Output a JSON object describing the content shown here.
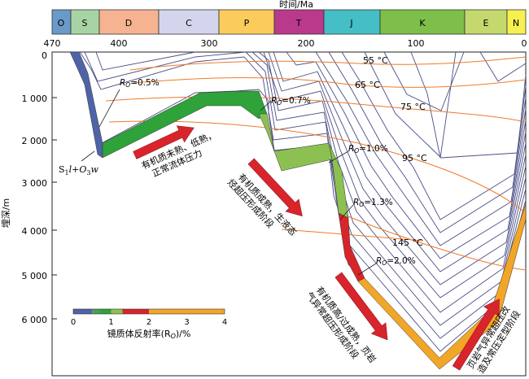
{
  "periods": [
    {
      "code": "O",
      "color": "#6A9AC8"
    },
    {
      "code": "S",
      "color": "#A7D4A4"
    },
    {
      "code": "D",
      "color": "#F6B391"
    },
    {
      "code": "C",
      "color": "#D3D5EC"
    },
    {
      "code": "P",
      "color": "#FBCC5B"
    },
    {
      "code": "T",
      "color": "#B9398B"
    },
    {
      "code": "J",
      "color": "#45BEC6"
    },
    {
      "code": "K",
      "color": "#7DBF49"
    },
    {
      "code": "E",
      "color": "#C4D86E"
    },
    {
      "code": "N",
      "color": "#F6F050"
    }
  ],
  "x_axis": {
    "title": "时间/Ma",
    "ticks": [
      "470",
      "400",
      "300",
      "200",
      "100",
      "0"
    ]
  },
  "y_axis": {
    "title": "埋深/m",
    "ticks": [
      "0",
      "1 000",
      "2 000",
      "3 000",
      "4 000",
      "5 000",
      "6 000"
    ]
  },
  "isotherms": [
    "55 °C",
    "65 °C",
    "75 °C",
    "95 °C",
    "145 °C"
  ],
  "ro_labels": [
    {
      "prefix": "R",
      "sub": "O",
      "value": "=0.5%"
    },
    {
      "prefix": "R",
      "sub": "O",
      "value": "=0.7%"
    },
    {
      "prefix": "R",
      "sub": "O",
      "value": "=1.0%"
    },
    {
      "prefix": "R",
      "sub": "O",
      "value": "=1.3%"
    },
    {
      "prefix": "R",
      "sub": "O",
      "value": "=2.0%"
    }
  ],
  "formation_label": {
    "a": "S",
    "a_sub": "1",
    "b": "l+O",
    "b_sub": "3",
    "c": "w"
  },
  "stage_labels": [
    {
      "line1": "有机质未熟、低熟，",
      "line2": "正常流体压力"
    },
    {
      "line1": "有机质成熟，生液态",
      "line2": "烃超压形成阶段"
    },
    {
      "line1": "有机质高/过成熟，页岩",
      "line2": "气异常超压形成阶段"
    },
    {
      "line1": "页岩气异常超压改",
      "line2": "造及常压定型阶段"
    }
  ],
  "legend": {
    "title": "镜质体反射率(R",
    "title_sub": "O",
    "title_suffix": ")/%",
    "ticks": [
      "0",
      "1",
      "2",
      "3",
      "4"
    ],
    "segments": [
      {
        "from": 0,
        "to": 0.5,
        "color": "#4F63A8"
      },
      {
        "from": 0.5,
        "to": 0.7,
        "color": "#4C9E52"
      },
      {
        "from": 0.7,
        "to": 1.0,
        "color": "#2FA23A"
      },
      {
        "from": 1.0,
        "to": 1.3,
        "color": "#8CC152"
      },
      {
        "from": 1.3,
        "to": 2.0,
        "color": "#D8242B"
      },
      {
        "from": 2.0,
        "to": 4.0,
        "color": "#F2A627"
      }
    ]
  },
  "colors": {
    "burial_lines": "#4A4E87",
    "isotherm": "#EE7A2A",
    "arrow": "#D8242B",
    "ro_immature": "#4F63A8",
    "ro_mature": "#2FA23A",
    "ro_high": "#8CC152",
    "ro_over": "#D8242B",
    "ro_post": "#F2A627"
  }
}
